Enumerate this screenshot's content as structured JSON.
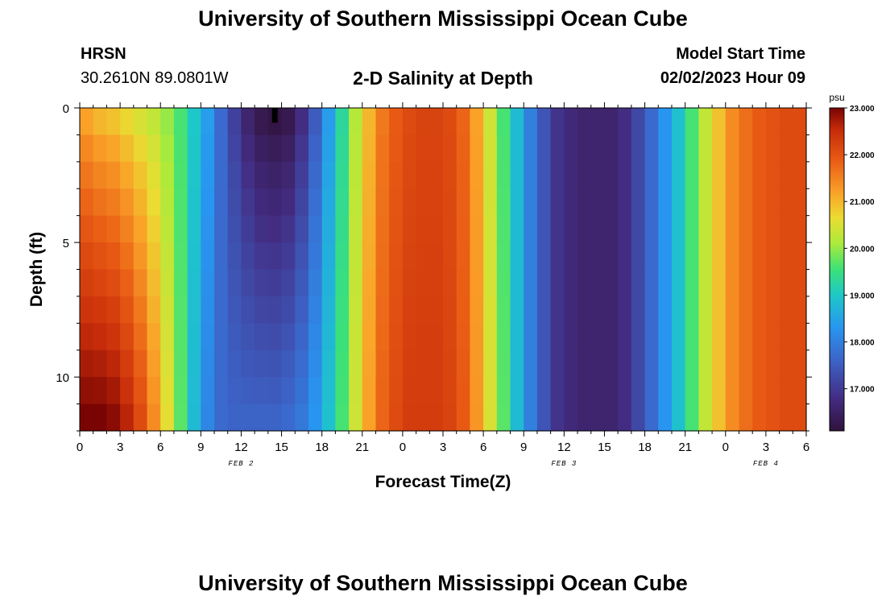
{
  "header": {
    "title": "University of Southern Mississippi Ocean Cube",
    "station_code": "HRSN",
    "station_coords": "30.2610N  89.0801W",
    "plot_title": "2-D Salinity at Depth",
    "model_label": "Model Start Time",
    "model_time": "02/02/2023 Hour 09"
  },
  "footer": {
    "title": "University of Southern Mississippi Ocean Cube"
  },
  "chart_data": {
    "type": "heatmap",
    "xlabel": "Forecast Time(Z)",
    "ylabel": "Depth (ft)",
    "x_tick_labels": [
      "0",
      "3",
      "6",
      "9",
      "12",
      "15",
      "18",
      "21",
      "0",
      "3",
      "6",
      "9",
      "12",
      "15",
      "18",
      "21",
      "0",
      "3",
      "6"
    ],
    "x_range_hours": [
      0,
      54
    ],
    "x_step_hours": 1,
    "date_labels": [
      {
        "label": "FEB 2",
        "hour": 12
      },
      {
        "label": "FEB 3",
        "hour": 36
      },
      {
        "label": "FEB 4",
        "hour": 51
      }
    ],
    "y_tick_labels": [
      "0",
      "5",
      "10"
    ],
    "y_range_ft": [
      0,
      12
    ],
    "y_step_ft": 1,
    "colorbar": {
      "unit": "psu",
      "min": 16.1,
      "max": 23.0,
      "tick_values": [
        23.0,
        22.0,
        21.0,
        20.0,
        19.0,
        18.0,
        17.0
      ],
      "tick_labels": [
        "23.000",
        "22.000",
        "21.000",
        "20.000",
        "19.000",
        "18.000",
        "17.000"
      ]
    },
    "surface_salinity_psu": [
      21.2,
      21.0,
      20.9,
      20.7,
      20.5,
      20.3,
      20.0,
      19.6,
      19.0,
      18.4,
      17.7,
      17.1,
      16.6,
      16.3,
      16.2,
      16.3,
      16.8,
      17.5,
      18.4,
      19.3,
      20.2,
      21.0,
      21.6,
      21.9,
      22.1,
      22.2,
      22.2,
      22.1,
      21.8,
      21.2,
      20.4,
      19.6,
      18.8,
      18.0,
      17.4,
      16.9,
      16.7,
      16.6,
      16.6,
      16.6,
      16.8,
      17.2,
      17.7,
      18.3,
      18.9,
      19.6,
      20.3,
      20.9,
      21.4,
      21.7,
      21.9,
      22.0,
      22.1,
      22.1
    ],
    "bottom_salinity_psu": [
      23.0,
      23.0,
      22.9,
      22.6,
      22.1,
      21.4,
      20.6,
      19.7,
      18.8,
      18.1,
      17.7,
      17.6,
      17.6,
      17.6,
      17.6,
      17.7,
      17.9,
      18.3,
      18.9,
      19.6,
      20.4,
      21.2,
      21.8,
      22.1,
      22.3,
      22.3,
      22.3,
      22.2,
      21.9,
      21.3,
      20.5,
      19.7,
      18.8,
      18.0,
      17.4,
      16.9,
      16.7,
      16.6,
      16.6,
      16.6,
      16.8,
      17.2,
      17.7,
      18.3,
      18.9,
      19.6,
      20.3,
      20.9,
      21.4,
      21.7,
      21.9,
      22.0,
      22.1,
      22.1
    ],
    "missing_cells": [
      {
        "hour": 14,
        "depth_ft": 0
      }
    ]
  }
}
